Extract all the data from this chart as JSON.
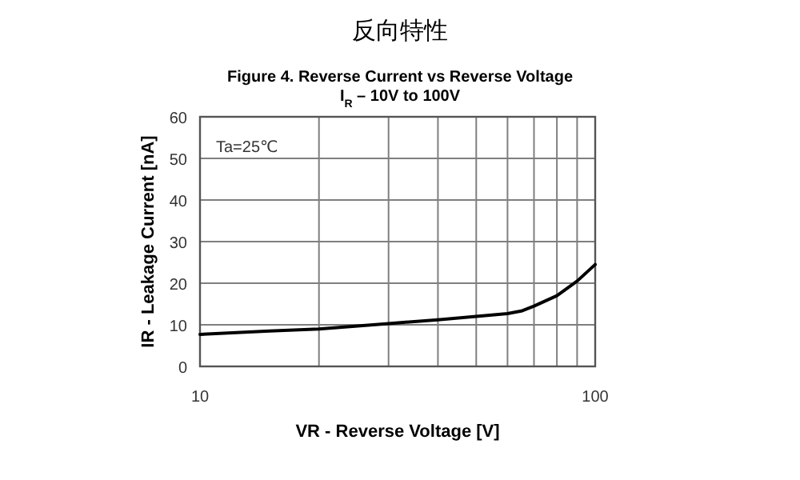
{
  "chart_data": {
    "type": "line",
    "title": "反向特性",
    "subtitle": "Figure 4. Reverse Current vs Reverse Voltage\nI$_{R}$ – 10V to 100V",
    "xlabel": "VR - Reverse Voltage [V]",
    "ylabel": "IR - Leakage Current [nA]",
    "annotations": [
      "Ta=25℃"
    ],
    "log": "x",
    "grid": true,
    "marker": "none",
    "line_style": "solid",
    "xlim": [
      10,
      100
    ],
    "xticks": [
      10,
      {
        "value": 20,
        "label": null
      },
      {
        "value": 30,
        "label": null
      },
      {
        "value": 40,
        "label": null
      },
      {
        "value": 50,
        "label": null
      },
      {
        "value": 60,
        "label": null
      },
      {
        "value": 70,
        "label": null
      },
      {
        "value": 80,
        "label": null
      },
      {
        "value": 90,
        "label": null
      },
      100
    ],
    "ylim": [
      0,
      60
    ],
    "yticks": [
      0,
      10,
      20,
      30,
      40,
      50,
      60
    ],
    "series": [
      {
        "color": "#000000",
        "x": [
          10,
          15,
          20,
          30,
          40,
          50,
          60,
          65,
          70,
          80,
          90,
          100
        ],
        "values": [
          7.7,
          8.5,
          9,
          10.3,
          11.2,
          12,
          12.7,
          13.3,
          14.5,
          17,
          20.5,
          24.5
        ]
      }
    ]
  }
}
